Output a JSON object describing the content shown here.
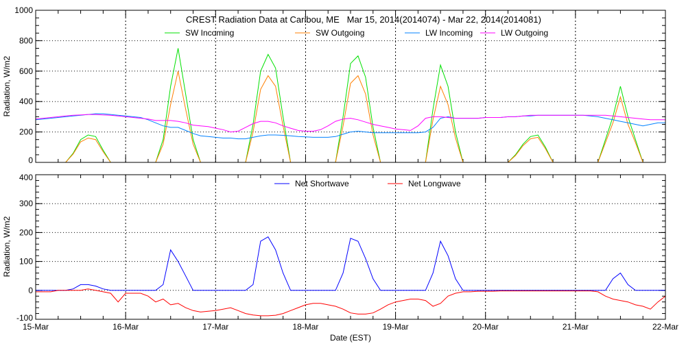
{
  "chart_data": [
    {
      "type": "line",
      "title": "CREST Radiation Data at Caribou, ME   Mar 15, 2014(2014074) - Mar 22, 2014(2014081)",
      "ylabel": "Radiation, W/m2",
      "xlabel": "",
      "x_unit": "hours since 15-Mar 00:00 EST, 2-hour step",
      "xlim": [
        0,
        168
      ],
      "ylim": [
        0,
        1000
      ],
      "yticks": [
        0,
        200,
        400,
        600,
        800,
        1000
      ],
      "grid": true,
      "legend_placement": "top",
      "series": [
        {
          "name": "SW Incoming",
          "color": "#00e000",
          "values": [
            0,
            0,
            0,
            0,
            0,
            60,
            150,
            180,
            170,
            80,
            0,
            0,
            0,
            0,
            0,
            0,
            0,
            150,
            500,
            750,
            450,
            150,
            0,
            0,
            0,
            0,
            0,
            0,
            0,
            250,
            600,
            710,
            620,
            300,
            0,
            0,
            0,
            0,
            0,
            0,
            0,
            300,
            650,
            700,
            560,
            230,
            0,
            0,
            0,
            0,
            0,
            0,
            0,
            350,
            640,
            500,
            200,
            0,
            0,
            0,
            0,
            0,
            0,
            0,
            50,
            120,
            170,
            180,
            100,
            0,
            0,
            0,
            0,
            0,
            0,
            0,
            150,
            300,
            500,
            300,
            150,
            0,
            0,
            0,
            0
          ]
        },
        {
          "name": "SW Outgoing",
          "color": "#ff7f00",
          "values": [
            0,
            0,
            0,
            0,
            0,
            55,
            135,
            160,
            150,
            70,
            0,
            0,
            0,
            0,
            0,
            0,
            0,
            120,
            380,
            600,
            350,
            120,
            0,
            0,
            0,
            0,
            0,
            0,
            0,
            200,
            480,
            570,
            500,
            240,
            0,
            0,
            0,
            0,
            0,
            0,
            0,
            240,
            520,
            570,
            450,
            180,
            0,
            0,
            0,
            0,
            0,
            0,
            0,
            280,
            500,
            380,
            160,
            0,
            0,
            0,
            0,
            0,
            0,
            0,
            45,
            110,
            155,
            165,
            90,
            0,
            0,
            0,
            0,
            0,
            0,
            0,
            130,
            260,
            430,
            250,
            130,
            0,
            0,
            0,
            0
          ]
        },
        {
          "name": "LW Incoming",
          "color": "#0080ff",
          "values": [
            280,
            285,
            290,
            295,
            300,
            305,
            310,
            315,
            320,
            320,
            315,
            310,
            305,
            300,
            295,
            280,
            260,
            240,
            230,
            230,
            210,
            190,
            175,
            170,
            165,
            160,
            160,
            155,
            155,
            165,
            175,
            180,
            180,
            178,
            175,
            170,
            168,
            165,
            165,
            165,
            170,
            185,
            200,
            205,
            200,
            195,
            195,
            195,
            195,
            195,
            195,
            195,
            200,
            230,
            290,
            300,
            290,
            290,
            290,
            290,
            295,
            295,
            295,
            300,
            300,
            305,
            305,
            310,
            310,
            310,
            310,
            310,
            310,
            310,
            305,
            300,
            290,
            280,
            270,
            260,
            250,
            240,
            250,
            260,
            260
          ]
        },
        {
          "name": "LW Outgoing",
          "color": "#ff00ff",
          "values": [
            285,
            290,
            295,
            300,
            305,
            310,
            312,
            315,
            315,
            312,
            310,
            305,
            300,
            295,
            290,
            285,
            275,
            275,
            275,
            270,
            260,
            245,
            240,
            235,
            225,
            215,
            200,
            205,
            230,
            255,
            270,
            270,
            260,
            240,
            225,
            210,
            205,
            205,
            215,
            240,
            270,
            285,
            290,
            280,
            265,
            250,
            240,
            230,
            220,
            215,
            210,
            240,
            290,
            300,
            300,
            295,
            290,
            290,
            290,
            290,
            295,
            295,
            295,
            300,
            300,
            305,
            310,
            310,
            310,
            310,
            310,
            310,
            310,
            310,
            310,
            310,
            310,
            305,
            300,
            295,
            290,
            285,
            280,
            280,
            280
          ]
        }
      ]
    },
    {
      "type": "line",
      "title": "",
      "ylabel": "Radiation, W/m2",
      "xlabel": "Date (EST)",
      "x_unit": "hours since 15-Mar 00:00 EST, 2-hour step",
      "xlim": [
        0,
        168
      ],
      "ylim": [
        -100,
        400
      ],
      "yticks": [
        -100,
        0,
        100,
        200,
        300,
        400
      ],
      "xticks": [
        "15-Mar",
        "16-Mar",
        "17-Mar",
        "18-Mar",
        "19-Mar",
        "20-Mar",
        "21-Mar",
        "22-Mar"
      ],
      "grid": true,
      "legend_placement": "top",
      "series": [
        {
          "name": "Net Shortwave",
          "color": "#0000ff",
          "values": [
            0,
            0,
            0,
            0,
            0,
            5,
            20,
            20,
            15,
            5,
            0,
            0,
            0,
            0,
            0,
            0,
            0,
            20,
            140,
            100,
            50,
            0,
            0,
            0,
            0,
            0,
            0,
            0,
            0,
            20,
            170,
            185,
            140,
            60,
            0,
            0,
            0,
            0,
            0,
            0,
            0,
            60,
            180,
            170,
            110,
            40,
            0,
            0,
            0,
            0,
            0,
            0,
            0,
            60,
            170,
            120,
            40,
            0,
            0,
            0,
            0,
            0,
            0,
            0,
            0,
            0,
            0,
            0,
            0,
            0,
            0,
            0,
            0,
            0,
            0,
            0,
            0,
            40,
            60,
            20,
            0,
            0,
            0,
            0,
            0
          ]
        },
        {
          "name": "Net Longwave",
          "color": "#ff0000",
          "values": [
            -5,
            -5,
            -5,
            0,
            0,
            0,
            0,
            5,
            0,
            -5,
            -10,
            -40,
            -10,
            -10,
            -10,
            -20,
            -40,
            -30,
            -50,
            -45,
            -60,
            -70,
            -75,
            -72,
            -70,
            -65,
            -60,
            -70,
            -80,
            -85,
            -88,
            -88,
            -86,
            -80,
            -70,
            -60,
            -50,
            -45,
            -45,
            -50,
            -55,
            -65,
            -78,
            -82,
            -82,
            -78,
            -65,
            -50,
            -40,
            -35,
            -30,
            -30,
            -35,
            -55,
            -45,
            -20,
            -10,
            -5,
            -5,
            -3,
            -3,
            -3,
            -2,
            -2,
            -2,
            -2,
            -2,
            -2,
            -2,
            -2,
            -2,
            -2,
            -2,
            -2,
            -2,
            -5,
            -20,
            -30,
            -35,
            -40,
            -50,
            -55,
            -65,
            -40,
            -20
          ]
        }
      ]
    }
  ]
}
